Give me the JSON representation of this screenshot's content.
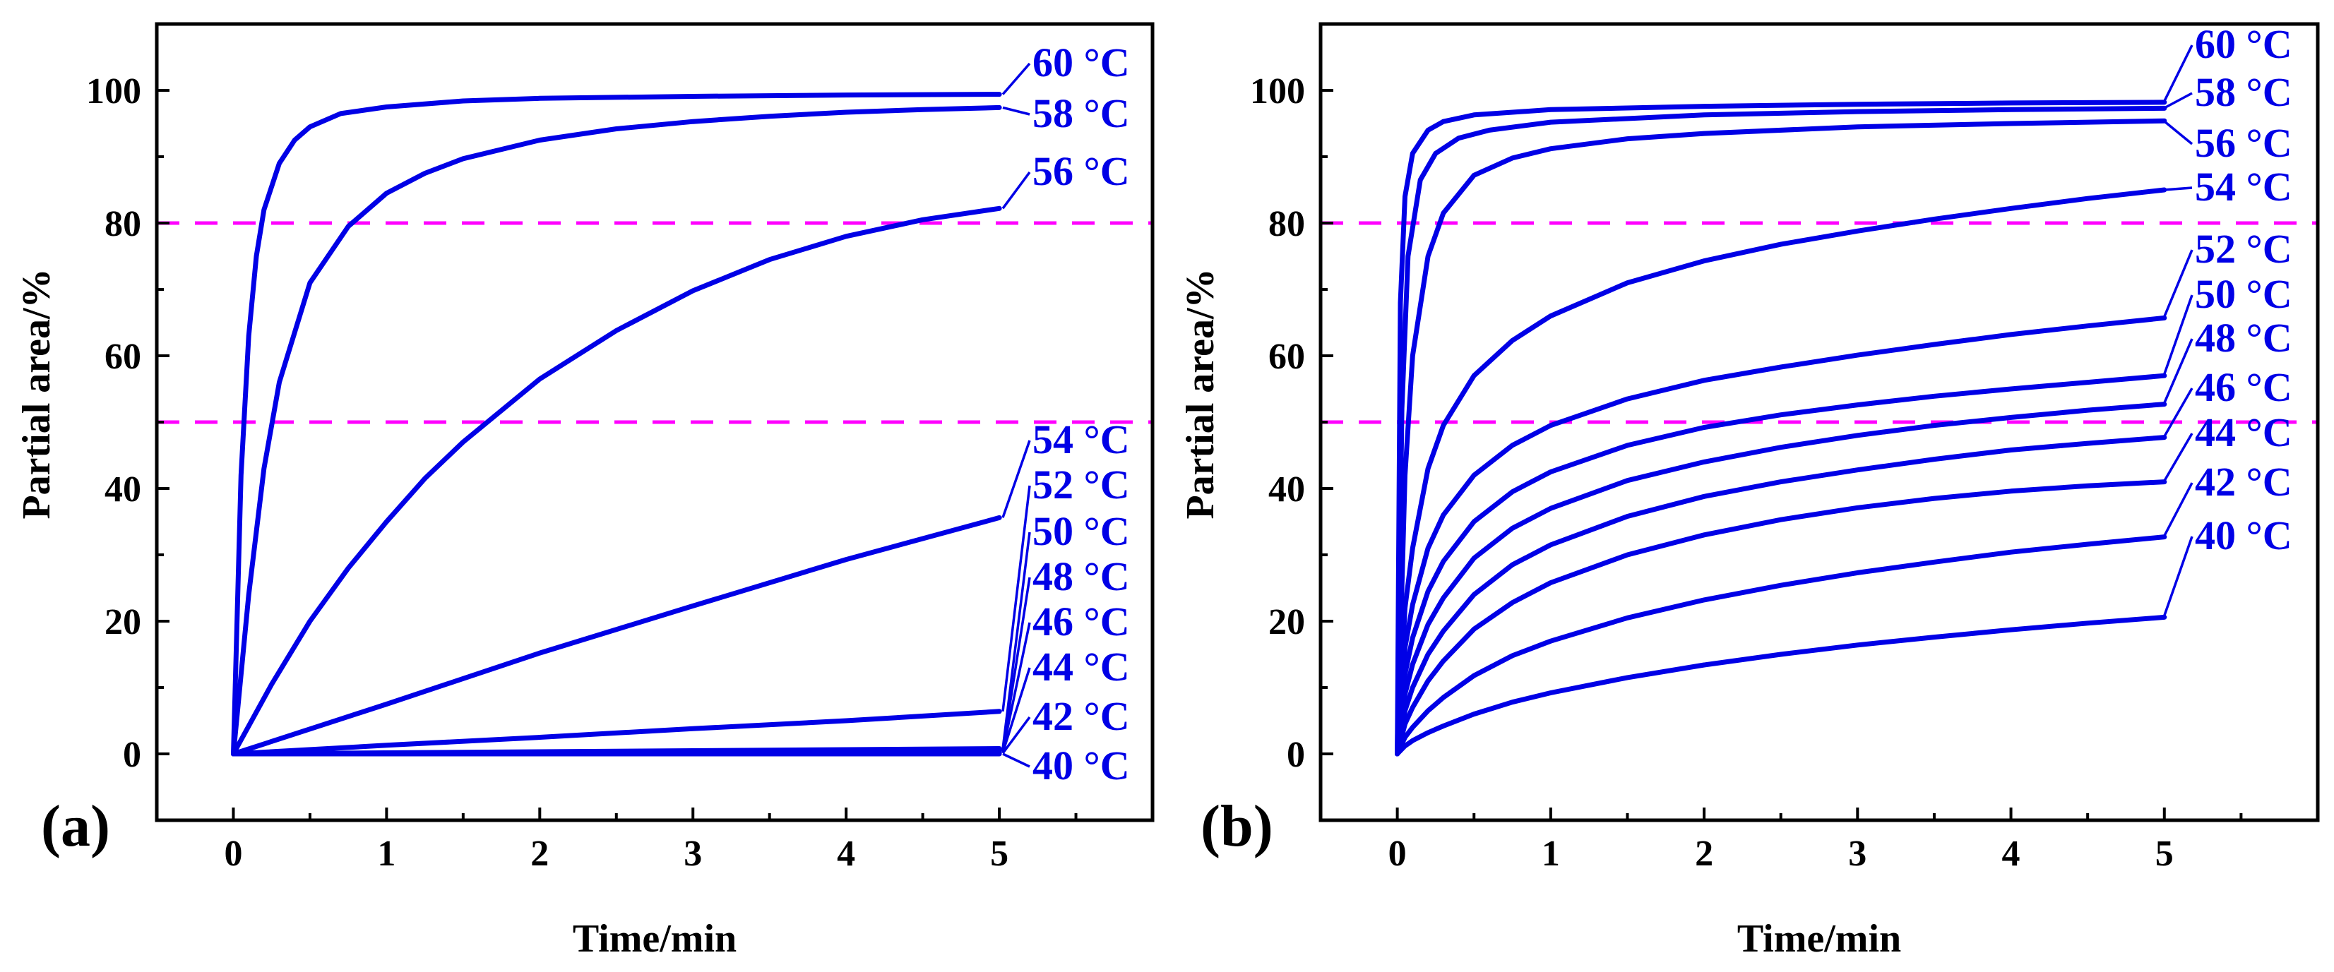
{
  "colors": {
    "curve": "#0000e6",
    "reference": "#ff00ff",
    "axis": "#000000"
  },
  "chart_data": [
    {
      "type": "line",
      "panel_label": "(a)",
      "xlabel": "Time/min",
      "ylabel": "Partial area/%",
      "xlim": [
        -0.5,
        6
      ],
      "ylim": [
        -10,
        110
      ],
      "xticks": [
        0,
        1,
        2,
        3,
        4,
        5
      ],
      "yticks": [
        0,
        20,
        40,
        60,
        80,
        100
      ],
      "reference_lines": [
        80,
        50
      ],
      "grid": false,
      "series": [
        {
          "name": "60 °C",
          "x": [
            0,
            0.05,
            0.1,
            0.15,
            0.2,
            0.3,
            0.4,
            0.5,
            0.7,
            1,
            1.5,
            2,
            3,
            4,
            5
          ],
          "y": [
            0,
            42,
            63,
            75,
            82,
            89,
            92.5,
            94.5,
            96.5,
            97.5,
            98.4,
            98.8,
            99.1,
            99.3,
            99.4
          ]
        },
        {
          "name": "58 °C",
          "x": [
            0,
            0.1,
            0.2,
            0.3,
            0.5,
            0.75,
            1,
            1.25,
            1.5,
            2,
            2.5,
            3,
            3.5,
            4,
            4.5,
            5
          ],
          "y": [
            0,
            24,
            43,
            56,
            71,
            79.5,
            84.5,
            87.5,
            89.7,
            92.5,
            94.2,
            95.3,
            96.1,
            96.7,
            97.1,
            97.4
          ]
        },
        {
          "name": "56 °C",
          "x": [
            0,
            0.25,
            0.5,
            0.75,
            1,
            1.25,
            1.5,
            2,
            2.5,
            3,
            3.5,
            4,
            4.5,
            5
          ],
          "y": [
            0,
            10.5,
            20,
            28,
            35,
            41.5,
            47,
            56.5,
            63.8,
            69.8,
            74.5,
            78,
            80.5,
            82.2
          ]
        },
        {
          "name": "54 °C",
          "x": [
            0,
            1,
            2,
            3,
            4,
            5
          ],
          "y": [
            0,
            7.5,
            15.2,
            22.3,
            29.3,
            35.6
          ]
        },
        {
          "name": "52 °C",
          "x": [
            0,
            1,
            2,
            3,
            4,
            5
          ],
          "y": [
            0,
            1.3,
            2.5,
            3.8,
            5,
            6.4
          ]
        },
        {
          "name": "50 °C",
          "x": [
            0,
            5
          ],
          "y": [
            0,
            0.8
          ]
        },
        {
          "name": "48 °C",
          "x": [
            0,
            5
          ],
          "y": [
            0,
            0.6
          ]
        },
        {
          "name": "46 °C",
          "x": [
            0,
            5
          ],
          "y": [
            0,
            0.4
          ]
        },
        {
          "name": "44 °C",
          "x": [
            0,
            5
          ],
          "y": [
            0,
            0.2
          ]
        },
        {
          "name": "42 °C",
          "x": [
            0,
            5
          ],
          "y": [
            0,
            0.1
          ]
        },
        {
          "name": "40 °C",
          "x": [
            0,
            5
          ],
          "y": [
            0,
            0
          ]
        }
      ]
    },
    {
      "type": "line",
      "panel_label": "(b)",
      "xlabel": "Time/min",
      "ylabel": "Partial area/%",
      "xlim": [
        -0.5,
        6
      ],
      "ylim": [
        -10,
        110
      ],
      "xticks": [
        0,
        1,
        2,
        3,
        4,
        5
      ],
      "yticks": [
        0,
        20,
        40,
        60,
        80,
        100
      ],
      "reference_lines": [
        80,
        50
      ],
      "grid": false,
      "series": [
        {
          "name": "60 °C",
          "x": [
            0,
            0.02,
            0.05,
            0.1,
            0.2,
            0.3,
            0.5,
            1,
            2,
            3,
            4,
            5
          ],
          "y": [
            0,
            68,
            84,
            90.5,
            94,
            95.3,
            96.3,
            97.1,
            97.6,
            97.9,
            98.1,
            98.2
          ]
        },
        {
          "name": "58 °C",
          "x": [
            0,
            0.03,
            0.07,
            0.15,
            0.25,
            0.4,
            0.6,
            1,
            2,
            3,
            4,
            5
          ],
          "y": [
            0,
            52,
            75,
            86.5,
            90.5,
            92.8,
            94,
            95.2,
            96.3,
            96.8,
            97.1,
            97.3
          ]
        },
        {
          "name": "56 °C",
          "x": [
            0,
            0.05,
            0.1,
            0.2,
            0.3,
            0.5,
            0.75,
            1,
            1.5,
            2,
            3,
            4,
            5
          ],
          "y": [
            0,
            42,
            60,
            75,
            81.5,
            87.2,
            89.8,
            91.2,
            92.7,
            93.5,
            94.5,
            95,
            95.4
          ]
        },
        {
          "name": "54 °C",
          "x": [
            0,
            0.05,
            0.1,
            0.2,
            0.3,
            0.5,
            0.75,
            1,
            1.5,
            2,
            2.5,
            3,
            3.5,
            4,
            4.5,
            5
          ],
          "y": [
            0,
            22,
            31,
            43,
            49.5,
            57,
            62.3,
            66,
            71,
            74.3,
            76.8,
            78.8,
            80.6,
            82.2,
            83.7,
            85
          ]
        },
        {
          "name": "52 °C",
          "x": [
            0,
            0.05,
            0.1,
            0.2,
            0.3,
            0.5,
            0.75,
            1,
            1.5,
            2,
            2.5,
            3,
            3.5,
            4,
            4.5,
            5
          ],
          "y": [
            0,
            16,
            22.5,
            31,
            36,
            42,
            46.5,
            49.5,
            53.5,
            56.3,
            58.3,
            60.1,
            61.7,
            63.2,
            64.5,
            65.7
          ]
        },
        {
          "name": "50 °C",
          "x": [
            0,
            0.05,
            0.1,
            0.2,
            0.3,
            0.5,
            0.75,
            1,
            1.5,
            2,
            2.5,
            3,
            3.5,
            4,
            4.5,
            5
          ],
          "y": [
            0,
            12,
            17.5,
            24.5,
            29,
            35,
            39.5,
            42.5,
            46.5,
            49.2,
            51.1,
            52.6,
            53.9,
            55,
            56,
            57
          ]
        },
        {
          "name": "48 °C",
          "x": [
            0,
            0.05,
            0.1,
            0.2,
            0.3,
            0.5,
            0.75,
            1,
            1.5,
            2,
            2.5,
            3,
            3.5,
            4,
            4.5,
            5
          ],
          "y": [
            0,
            9,
            13.5,
            19.5,
            23.5,
            29.5,
            34,
            37,
            41.2,
            44,
            46.2,
            48,
            49.5,
            50.7,
            51.8,
            52.7
          ]
        },
        {
          "name": "46 °C",
          "x": [
            0,
            0.05,
            0.1,
            0.2,
            0.3,
            0.5,
            0.75,
            1,
            1.5,
            2,
            2.5,
            3,
            3.5,
            4,
            4.5,
            5
          ],
          "y": [
            0,
            6.5,
            10,
            15,
            18.5,
            24,
            28.5,
            31.5,
            35.8,
            38.8,
            41,
            42.8,
            44.4,
            45.8,
            46.8,
            47.7
          ]
        },
        {
          "name": "44 °C",
          "x": [
            0,
            0.05,
            0.1,
            0.2,
            0.3,
            0.5,
            0.75,
            1,
            1.5,
            2,
            2.5,
            3,
            3.5,
            4,
            4.5,
            5
          ],
          "y": [
            0,
            4.5,
            7,
            11,
            14,
            18.8,
            22.8,
            25.8,
            30,
            33,
            35.3,
            37.1,
            38.5,
            39.6,
            40.4,
            41
          ]
        },
        {
          "name": "42 °C",
          "x": [
            0,
            0.05,
            0.1,
            0.2,
            0.3,
            0.5,
            0.75,
            1,
            1.5,
            2,
            2.5,
            3,
            3.5,
            4,
            4.5,
            5
          ],
          "y": [
            0,
            2.5,
            4,
            6.5,
            8.5,
            11.8,
            14.8,
            17,
            20.5,
            23.2,
            25.4,
            27.3,
            28.9,
            30.4,
            31.6,
            32.7
          ]
        },
        {
          "name": "40 °C",
          "x": [
            0,
            0.05,
            0.1,
            0.2,
            0.3,
            0.5,
            0.75,
            1,
            1.5,
            2,
            2.5,
            3,
            3.5,
            4,
            4.5,
            5
          ],
          "y": [
            0,
            1.2,
            2,
            3.2,
            4.2,
            6,
            7.8,
            9.2,
            11.5,
            13.4,
            15,
            16.4,
            17.6,
            18.7,
            19.7,
            20.6
          ]
        }
      ]
    }
  ]
}
